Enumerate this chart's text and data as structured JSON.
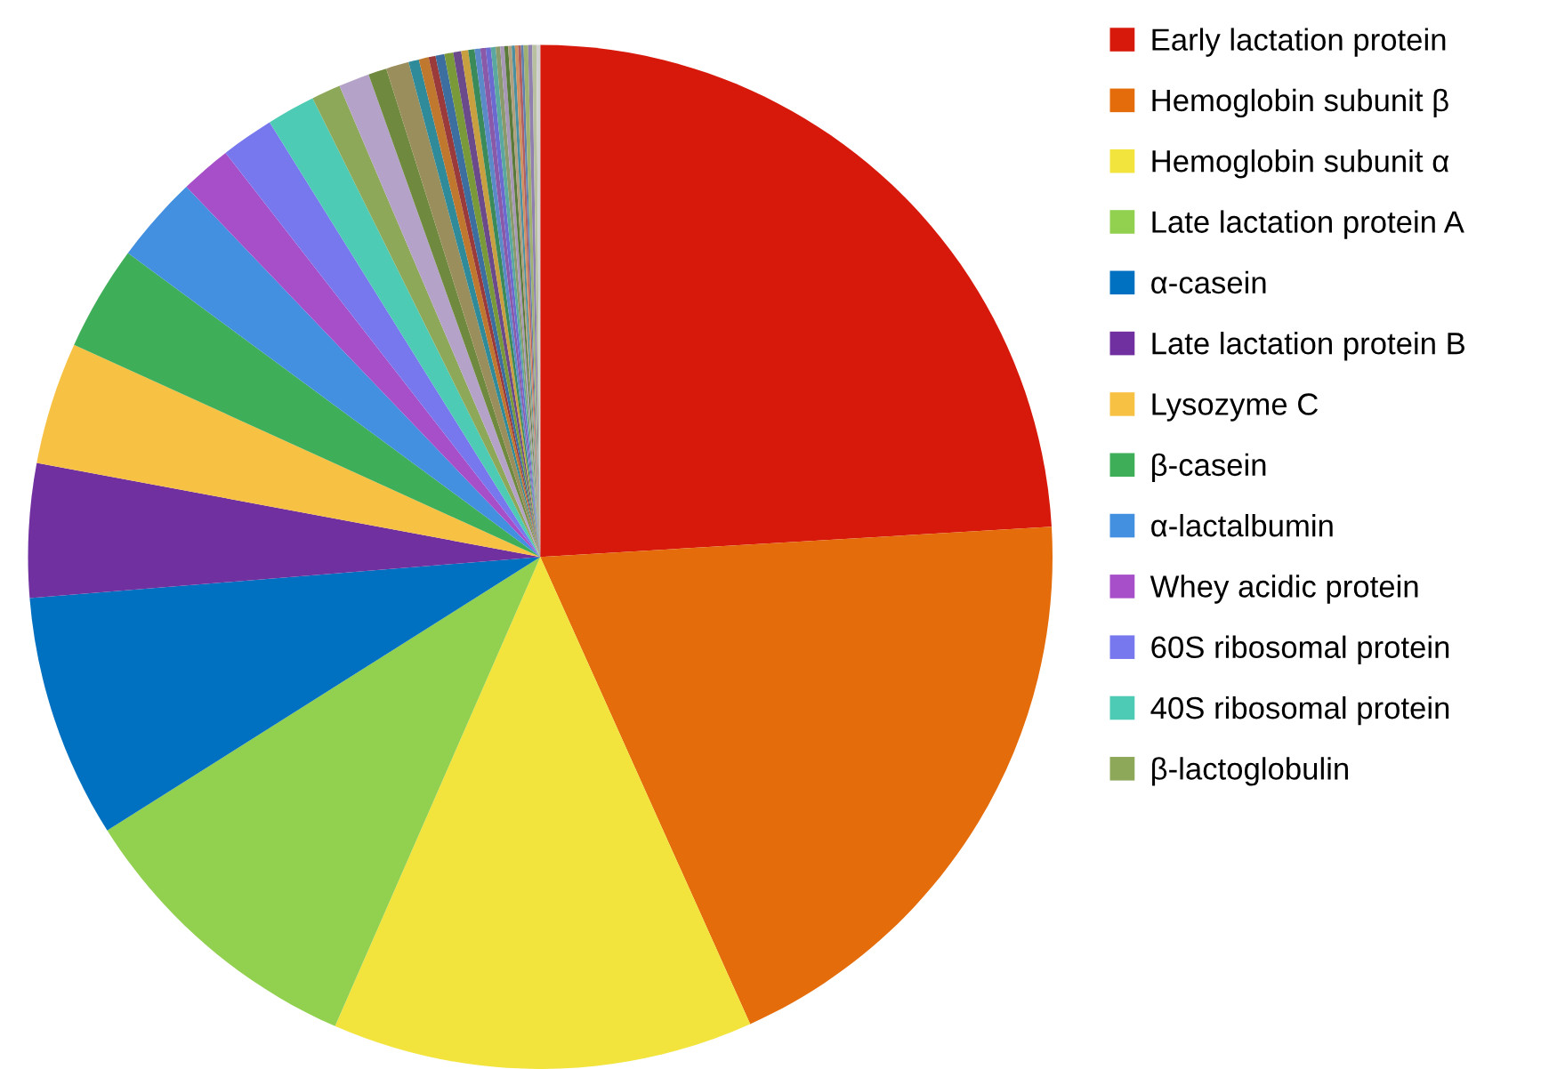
{
  "chart_data": {
    "type": "pie",
    "legend": "right",
    "categories": [
      "Early lactation protein",
      "Hemoglobin subunit β",
      "Hemoglobin subunit α",
      "Late lactation protein A",
      "α-casein",
      "Late lactation protein B",
      "Lysozyme C",
      "β-casein",
      "α-lactalbumin",
      "Whey acidic protein",
      "60S ribosomal protein",
      "40S ribosomal protein",
      "β-lactoglobulin",
      null,
      null,
      null,
      null,
      null,
      null,
      null,
      null,
      null,
      null,
      null,
      null,
      null,
      null,
      null,
      null,
      null,
      null,
      null,
      null,
      null,
      null,
      null,
      null,
      null,
      null,
      null
    ],
    "values": [
      24.06,
      19.22,
      13.28,
      9.47,
      7.69,
      4.22,
      3.86,
      3.31,
      2.75,
      1.61,
      1.67,
      1.53,
      0.92,
      0.97,
      0.58,
      0.72,
      0.33,
      0.31,
      0.22,
      0.28,
      0.28,
      0.25,
      0.22,
      0.2,
      0.18,
      0.17,
      0.16,
      0.15,
      0.14,
      0.13,
      0.12,
      0.11,
      0.1,
      0.1,
      0.09,
      0.08,
      0.14,
      0.13,
      0.13,
      0.12
    ],
    "colors": [
      "#d7190b",
      "#e46c0a",
      "#f2e43c",
      "#92d050",
      "#0070c0",
      "#7030a0",
      "#f7c143",
      "#3fae58",
      "#438fe0",
      "#a64fc8",
      "#7878ee",
      "#4ecbb4",
      "#8ea85a",
      "#b4a2c8",
      "#6f8a3e",
      "#9a8f5c",
      "#2f8a9a",
      "#c0782f",
      "#9a3a3a",
      "#3d6ea0",
      "#7a9a3a",
      "#6a4a8a",
      "#c8a040",
      "#3a8a5a",
      "#5a8ac8",
      "#8a5aa8",
      "#6a6ad0",
      "#5aa8a0",
      "#8a9a6a",
      "#a898b8",
      "#5a7a3a",
      "#b0a080",
      "#4a90a0",
      "#d09060",
      "#b06060",
      "#6080b0",
      "#a0b070",
      "#9080b0",
      "#b8c0a0",
      "#d0d0d0"
    ]
  }
}
